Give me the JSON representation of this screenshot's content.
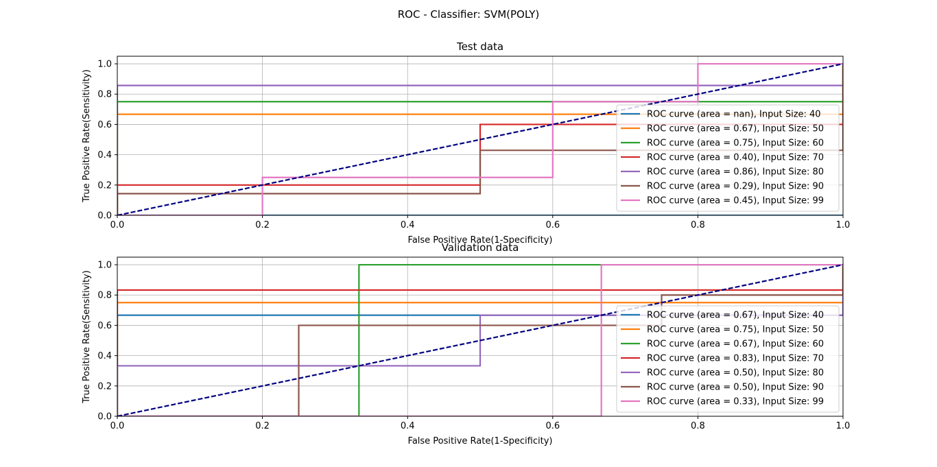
{
  "figure": {
    "title": "ROC - Classifier: SVM(POLY)"
  },
  "chart_data": [
    {
      "type": "line",
      "title": "Test data",
      "xlabel": "False Positive Rate(1-Specificity)",
      "ylabel": "True Positive Rate(Sensitivity)",
      "xlim": [
        0,
        1
      ],
      "ylim": [
        0,
        1.05
      ],
      "xticks": [
        "0.0",
        "0.2",
        "0.4",
        "0.6",
        "0.8",
        "1.0"
      ],
      "yticks": [
        "0.0",
        "0.2",
        "0.4",
        "0.6",
        "0.8",
        "1.0"
      ],
      "grid": true,
      "legend_position": "lower-right",
      "series": [
        {
          "name": "ROC curve (area = nan), Input Size: 40",
          "color": "#1f77b4",
          "x": [
            0,
            1
          ],
          "y": [
            0,
            0
          ]
        },
        {
          "name": "ROC curve (area = 0.67), Input Size: 50",
          "color": "#ff7f0e",
          "x": [
            0,
            0,
            1,
            1
          ],
          "y": [
            0,
            0.667,
            0.667,
            1
          ]
        },
        {
          "name": "ROC curve (area = 0.75), Input Size: 60",
          "color": "#2ca02c",
          "x": [
            0,
            0,
            1,
            1
          ],
          "y": [
            0,
            0.75,
            0.75,
            1
          ]
        },
        {
          "name": "ROC curve (area = 0.40), Input Size: 70",
          "color": "#d62728",
          "x": [
            0,
            0,
            0.5,
            0.5,
            1,
            1
          ],
          "y": [
            0,
            0.2,
            0.2,
            0.6,
            0.6,
            1
          ]
        },
        {
          "name": "ROC curve (area = 0.86), Input Size: 80",
          "color": "#9467bd",
          "x": [
            0,
            0,
            1,
            1
          ],
          "y": [
            0,
            0.857,
            0.857,
            1
          ]
        },
        {
          "name": "ROC curve (area = 0.29), Input Size: 90",
          "color": "#8c564b",
          "x": [
            0,
            0,
            0.5,
            0.5,
            1,
            1
          ],
          "y": [
            0,
            0.143,
            0.143,
            0.429,
            0.429,
            1
          ]
        },
        {
          "name": "ROC curve (area = 0.45), Input Size: 99",
          "color": "#e377c2",
          "x": [
            0,
            0.2,
            0.2,
            0.6,
            0.6,
            0.8,
            0.8,
            1
          ],
          "y": [
            0,
            0,
            0.25,
            0.25,
            0.75,
            0.75,
            1,
            1
          ]
        }
      ],
      "diagonal": {
        "color": "#000080",
        "x": [
          0,
          1
        ],
        "y": [
          0,
          1
        ]
      }
    },
    {
      "type": "line",
      "title": "Validation data",
      "xlabel": "False Positive Rate(1-Specificity)",
      "ylabel": "True Positive Rate(Sensitivity)",
      "xlim": [
        0,
        1
      ],
      "ylim": [
        0,
        1.05
      ],
      "xticks": [
        "0.0",
        "0.2",
        "0.4",
        "0.6",
        "0.8",
        "1.0"
      ],
      "yticks": [
        "0.0",
        "0.2",
        "0.4",
        "0.6",
        "0.8",
        "1.0"
      ],
      "grid": true,
      "legend_position": "lower-right",
      "series": [
        {
          "name": "ROC curve (area = 0.67), Input Size: 40",
          "color": "#1f77b4",
          "x": [
            0,
            0,
            1,
            1
          ],
          "y": [
            0,
            0.667,
            0.667,
            1
          ]
        },
        {
          "name": "ROC curve (area = 0.75), Input Size: 50",
          "color": "#ff7f0e",
          "x": [
            0,
            0,
            1,
            1
          ],
          "y": [
            0,
            0.75,
            0.75,
            1
          ]
        },
        {
          "name": "ROC curve (area = 0.67), Input Size: 60",
          "color": "#2ca02c",
          "x": [
            0,
            0.333,
            0.333,
            0.667,
            0.667,
            1
          ],
          "y": [
            0,
            0,
            1,
            1,
            1,
            1
          ]
        },
        {
          "name": "ROC curve (area = 0.83), Input Size: 70",
          "color": "#d62728",
          "x": [
            0,
            0,
            1,
            1
          ],
          "y": [
            0,
            0.833,
            0.833,
            1
          ]
        },
        {
          "name": "ROC curve (area = 0.50), Input Size: 80",
          "color": "#9467bd",
          "x": [
            0,
            0,
            0.5,
            0.5,
            1,
            1
          ],
          "y": [
            0,
            0.333,
            0.333,
            0.667,
            0.667,
            1
          ]
        },
        {
          "name": "ROC curve (area = 0.50), Input Size: 90",
          "color": "#8c564b",
          "x": [
            0,
            0.25,
            0.25,
            0.75,
            0.75,
            1,
            1
          ],
          "y": [
            0,
            0,
            0.6,
            0.6,
            0.8,
            0.8,
            1
          ]
        },
        {
          "name": "ROC curve (area = 0.33), Input Size: 99",
          "color": "#e377c2",
          "x": [
            0,
            0.667,
            0.667,
            1
          ],
          "y": [
            0,
            0,
            1,
            1
          ]
        }
      ],
      "diagonal": {
        "color": "#000080",
        "x": [
          0,
          1
        ],
        "y": [
          0,
          1
        ]
      }
    }
  ]
}
